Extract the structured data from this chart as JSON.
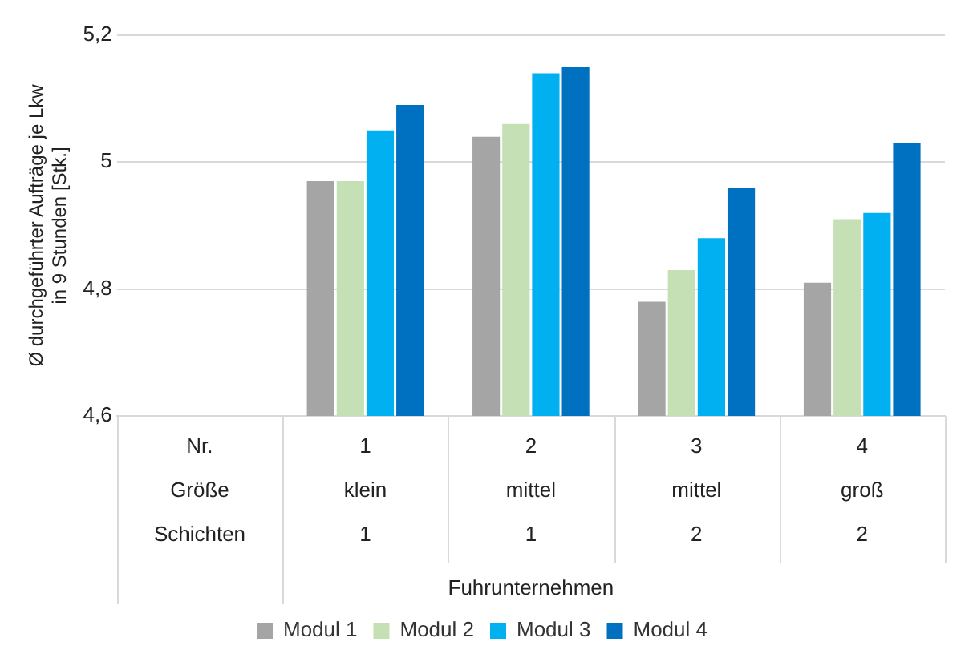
{
  "chart_data": {
    "type": "bar",
    "ylabel": "Ø durchgeführter Aufträge je Lkw\nin 9 Stunden [Stk.]",
    "xlabel": "Fuhrunternehmen",
    "categories": [
      "Nr.\nGröße\nSchichten",
      "1\nklein\n1",
      "2\nmittel\n1",
      "3\nmittel\n2",
      "4\ngroß\n2"
    ],
    "series": [
      {
        "name": "Modul 1",
        "color": "#a5a5a5",
        "values": [
          null,
          4.97,
          5.04,
          4.78,
          4.81
        ]
      },
      {
        "name": "Modul 2",
        "color": "#c5e0b4",
        "values": [
          null,
          4.97,
          5.06,
          4.83,
          4.91
        ]
      },
      {
        "name": "Modul 3",
        "color": "#00b0f0",
        "values": [
          null,
          5.05,
          5.14,
          4.88,
          4.92
        ]
      },
      {
        "name": "Modul 4",
        "color": "#0070c0",
        "values": [
          null,
          5.09,
          5.15,
          4.96,
          5.03
        ]
      }
    ],
    "ylim": [
      4.6,
      5.2
    ],
    "yticks": [
      {
        "value": 4.6,
        "label": "4,6"
      },
      {
        "value": 4.8,
        "label": "4,8"
      },
      {
        "value": 5,
        "label": "5"
      },
      {
        "value": 5.2,
        "label": "5,2"
      }
    ],
    "grid": "y",
    "legend": "bottom"
  }
}
